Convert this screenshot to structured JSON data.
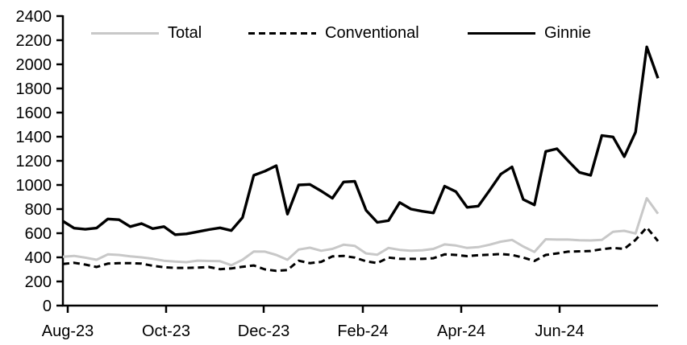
{
  "chart_data": {
    "type": "line",
    "title": "",
    "xlabel": "",
    "ylabel": "",
    "ylim": [
      0,
      2400
    ],
    "y_ticks": [
      0,
      200,
      400,
      600,
      800,
      1000,
      1200,
      1400,
      1600,
      1800,
      2000,
      2200,
      2400
    ],
    "x_tick_labels": [
      "Aug-23",
      "Oct-23",
      "Dec-23",
      "Feb-24",
      "Apr-24",
      "Jun-24"
    ],
    "grid": false,
    "legend_position": "top",
    "frequency": "weekly",
    "axis_color": "#000000",
    "series": [
      {
        "name": "Total",
        "color": "#c8c8c8",
        "dash": "solid",
        "line_width": 3,
        "values": [
          405,
          412,
          397,
          380,
          425,
          420,
          408,
          400,
          388,
          372,
          365,
          360,
          373,
          370,
          368,
          335,
          380,
          448,
          447,
          420,
          380,
          465,
          480,
          455,
          470,
          505,
          495,
          433,
          422,
          478,
          462,
          455,
          458,
          470,
          507,
          498,
          478,
          485,
          505,
          530,
          545,
          490,
          445,
          550,
          547,
          547,
          542,
          540,
          545,
          612,
          620,
          598,
          890,
          762
        ]
      },
      {
        "name": "Conventional",
        "color": "#000000",
        "dash": "dashed",
        "line_width": 3,
        "values": [
          345,
          355,
          340,
          320,
          348,
          352,
          352,
          348,
          330,
          318,
          313,
          313,
          315,
          320,
          302,
          308,
          322,
          333,
          300,
          288,
          295,
          372,
          352,
          363,
          408,
          412,
          398,
          367,
          353,
          398,
          388,
          387,
          387,
          393,
          425,
          420,
          410,
          418,
          422,
          427,
          420,
          398,
          370,
          420,
          433,
          447,
          450,
          453,
          467,
          478,
          470,
          545,
          648,
          535
        ]
      },
      {
        "name": "Ginnie",
        "color": "#000000",
        "dash": "solid",
        "line_width": 3.4,
        "values": [
          700,
          642,
          633,
          643,
          718,
          712,
          655,
          680,
          638,
          655,
          588,
          595,
          612,
          630,
          645,
          622,
          730,
          1080,
          1115,
          1160,
          758,
          1000,
          1005,
          950,
          890,
          1025,
          1030,
          790,
          690,
          705,
          855,
          800,
          782,
          768,
          990,
          945,
          815,
          825,
          955,
          1090,
          1150,
          880,
          835,
          1278,
          1300,
          1200,
          1105,
          1080,
          1410,
          1398,
          1235,
          1438,
          2145,
          1885
        ]
      }
    ]
  }
}
